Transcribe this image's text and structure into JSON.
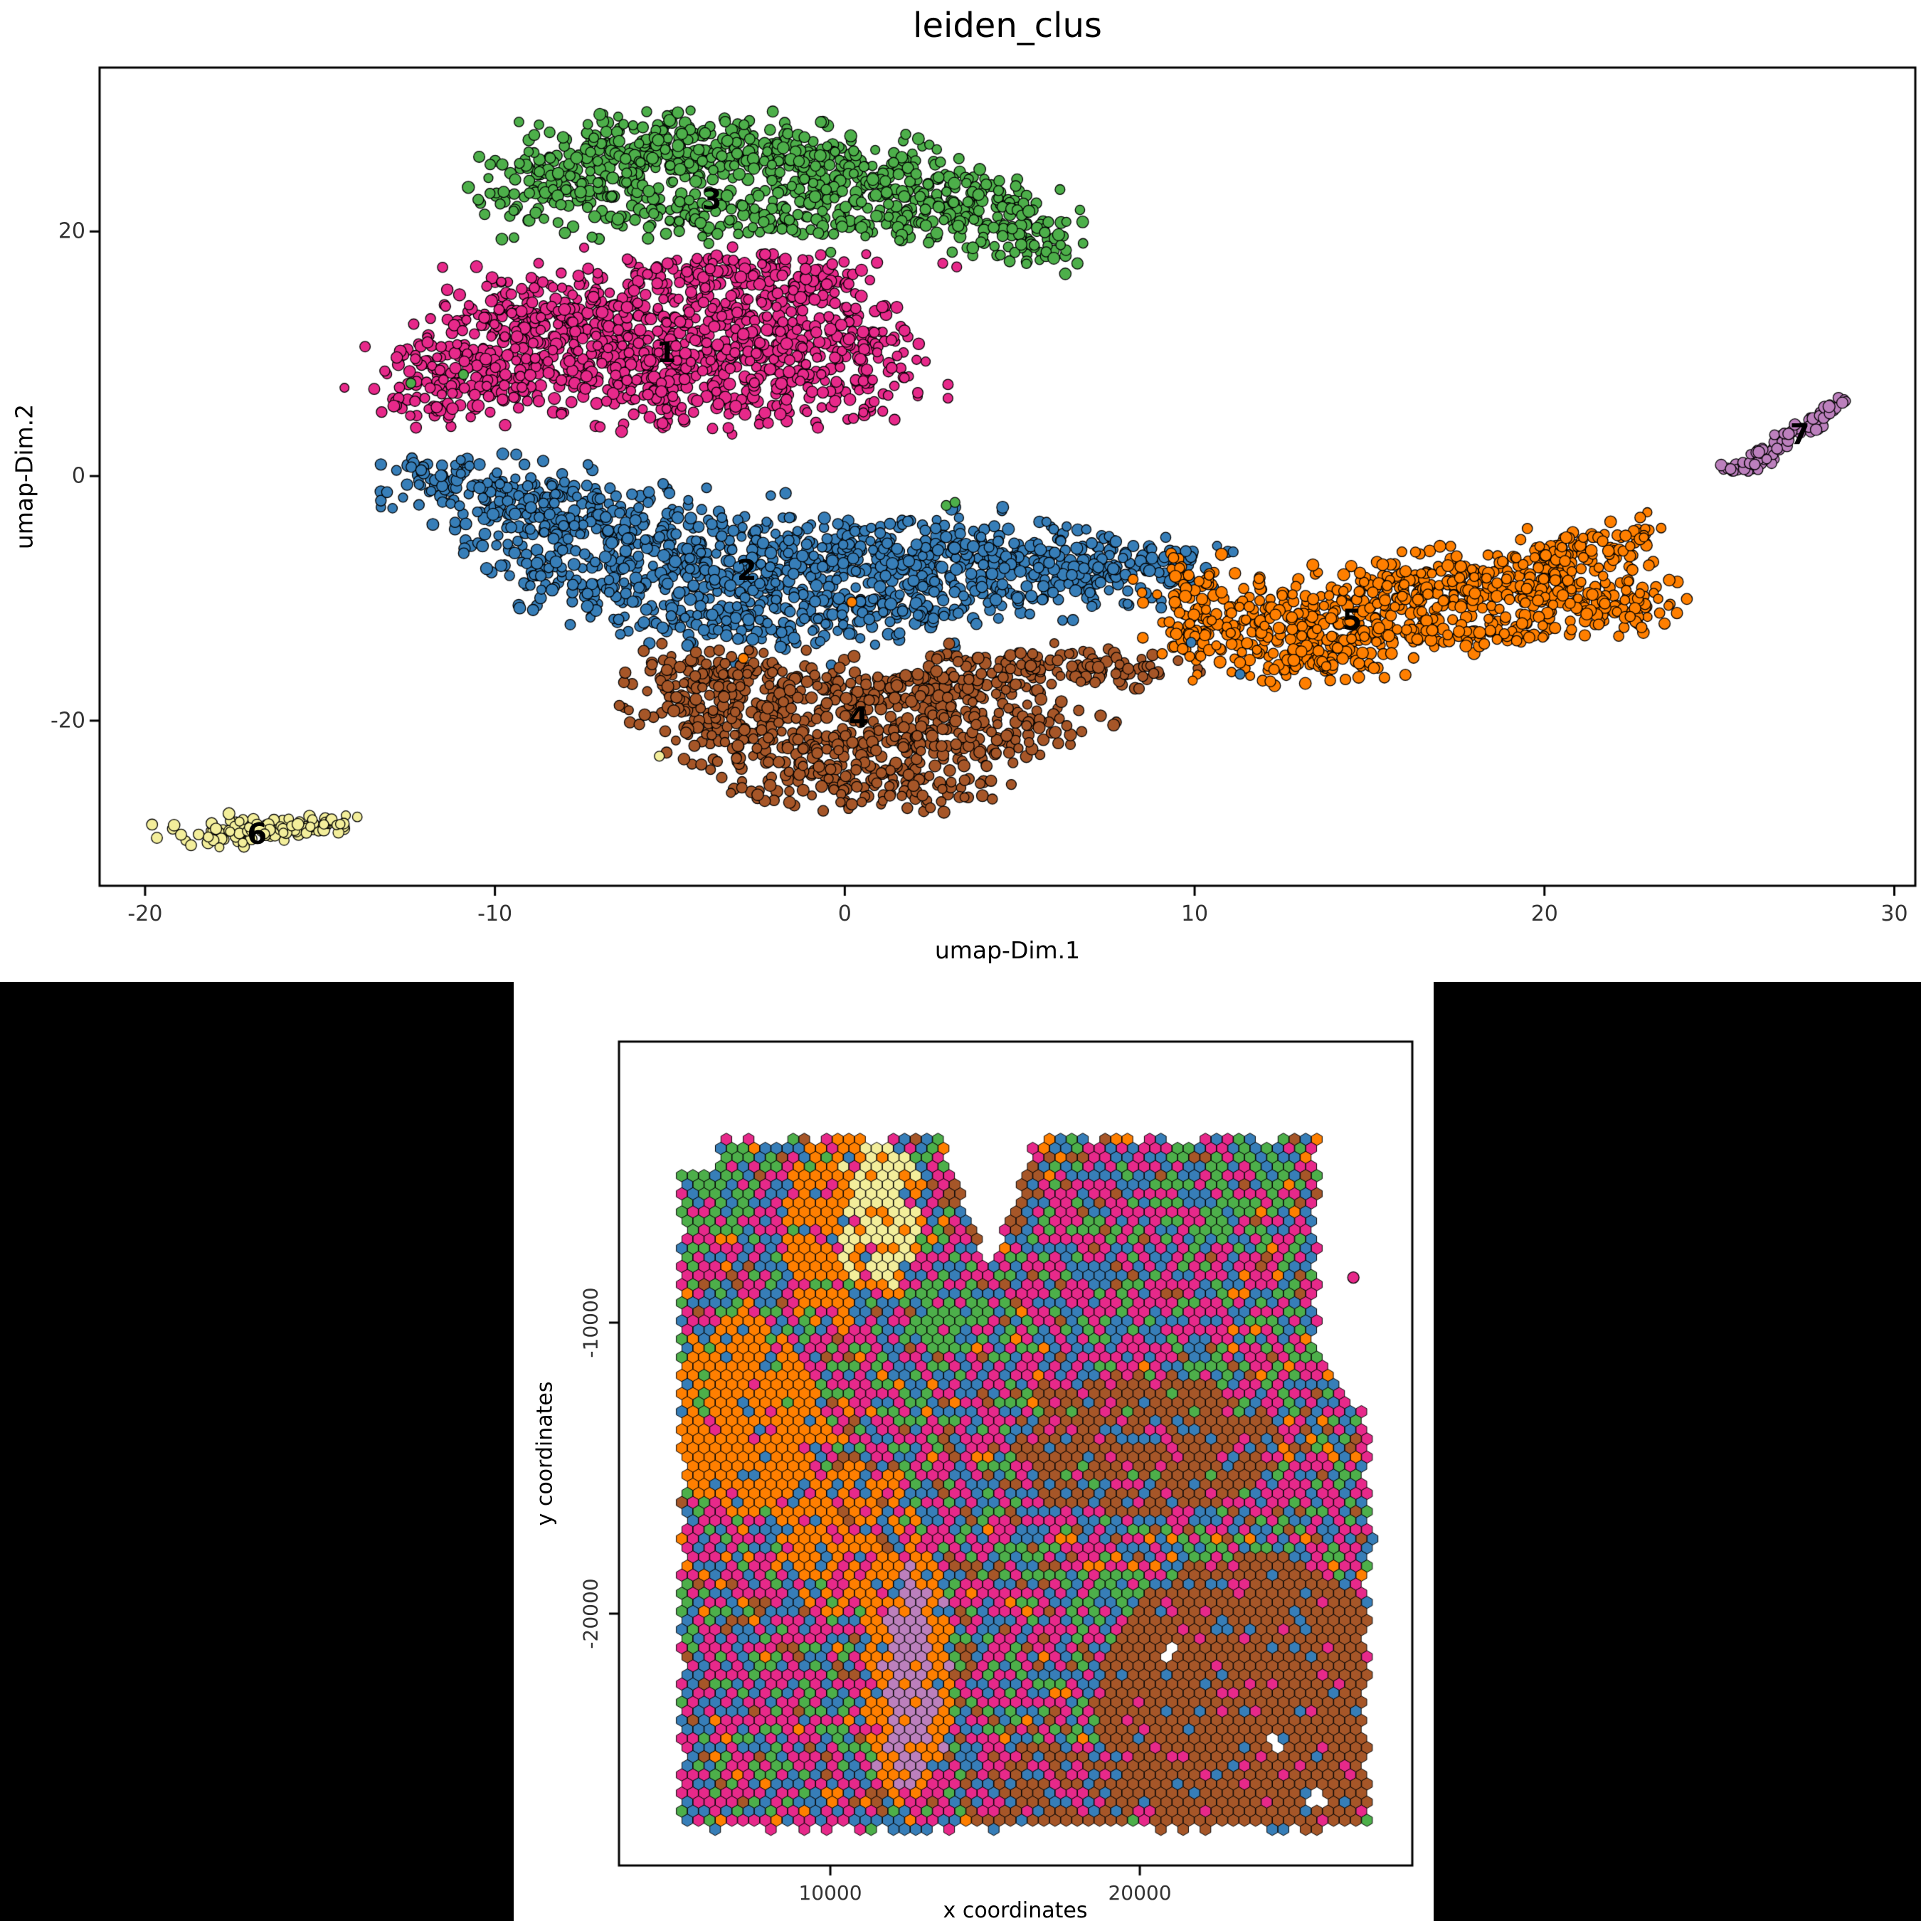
{
  "clusters": [
    {
      "label": "1",
      "color": "#E7298A"
    },
    {
      "label": "2",
      "color": "#377EB8"
    },
    {
      "label": "3",
      "color": "#4DAF4A"
    },
    {
      "label": "4",
      "color": "#A65628"
    },
    {
      "label": "5",
      "color": "#FF7F00"
    },
    {
      "label": "6",
      "color": "#F3EE9B"
    },
    {
      "label": "7",
      "color": "#BC80BD"
    }
  ],
  "point_stroke": "#000000",
  "chart_data": [
    {
      "id": "umap",
      "type": "scatter",
      "title": "leiden_clus",
      "xlabel": "umap-Dim.1",
      "ylabel": "umap-Dim.2",
      "xlim": [
        -21.3,
        30.6
      ],
      "ylim": [
        -33.5,
        33.4
      ],
      "x_ticks": [
        -20,
        -10,
        0,
        10,
        20,
        30
      ],
      "y_ticks": [
        -20,
        0,
        20
      ],
      "legend": "none",
      "grid": false,
      "draw_order": [
        "3",
        "1",
        "2",
        "4",
        "5",
        "6",
        "7"
      ],
      "clusters": [
        {
          "label": "3",
          "label_pos": [
            -3.8,
            22.6
          ],
          "blobs": [
            [
              -8.5,
              23.5,
              1.2,
              1.8,
              75
            ],
            [
              -7,
              25,
              1.5,
              2,
              125
            ],
            [
              -5,
              26.5,
              1.5,
              1.5,
              125
            ],
            [
              -3,
              26.5,
              1.5,
              1.5,
              110
            ],
            [
              -1,
              25.5,
              1.5,
              1.5,
              100
            ],
            [
              1,
              24.5,
              1.5,
              1.5,
              90
            ],
            [
              3,
              23,
              1.2,
              1.5,
              75
            ],
            [
              4.5,
              21,
              1,
              1.5,
              60
            ],
            [
              5.5,
              19,
              0.8,
              1.2,
              45
            ],
            [
              -4,
              21.5,
              2.5,
              1.2,
              100
            ],
            [
              -1,
              21,
              2,
              1,
              60
            ],
            [
              2,
              20.5,
              1.5,
              0.8,
              40
            ]
          ]
        },
        {
          "label": "1",
          "label_pos": [
            -5.1,
            10.1
          ],
          "blobs": [
            [
              -9.5,
              12,
              1.5,
              2,
              125
            ],
            [
              -7.5,
              13.5,
              1.8,
              2,
              150
            ],
            [
              -5,
              12,
              2,
              2.5,
              175
            ],
            [
              -3,
              10,
              2,
              2.5,
              150
            ],
            [
              -1.5,
              13,
              1.5,
              2,
              100
            ],
            [
              -6.5,
              8.5,
              2,
              1.5,
              125
            ],
            [
              -10,
              7.5,
              1.5,
              1.5,
              90
            ],
            [
              -12,
              6,
              1,
              1,
              40
            ],
            [
              -3.5,
              6,
              2,
              1.5,
              100
            ],
            [
              -0.5,
              8,
              1.5,
              2,
              75
            ],
            [
              -1,
              16.5,
              1.2,
              1.2,
              50
            ],
            [
              -4,
              16.5,
              1.5,
              1,
              60
            ],
            [
              0.5,
              11,
              1,
              1.5,
              40
            ],
            [
              -12,
              9.5,
              0.8,
              0.8,
              25
            ]
          ]
        },
        {
          "label": "2",
          "label_pos": [
            -2.8,
            -7.7
          ],
          "blobs": [
            [
              -10.5,
              -1,
              1.2,
              1.2,
              60
            ],
            [
              -9,
              -2.5,
              1.5,
              1.5,
              100
            ],
            [
              -7,
              -4,
              1.8,
              1.8,
              125
            ],
            [
              -4.5,
              -6,
              2,
              2,
              150
            ],
            [
              -2,
              -8,
              2,
              2,
              150
            ],
            [
              0.5,
              -7.5,
              1.8,
              1.8,
              125
            ],
            [
              3,
              -6,
              2,
              1.5,
              125
            ],
            [
              5.5,
              -6.5,
              1.8,
              1.2,
              100
            ],
            [
              7.5,
              -8,
              1.5,
              1.2,
              75
            ],
            [
              -1,
              -12,
              1.8,
              1.5,
              90
            ],
            [
              -4,
              -11.5,
              1.5,
              1.2,
              65
            ],
            [
              2,
              -10.5,
              1.5,
              1.2,
              65
            ],
            [
              -6.5,
              -9.5,
              1,
              1.5,
              50
            ],
            [
              -8.5,
              -7.5,
              0.8,
              1.5,
              40
            ],
            [
              5,
              -9.5,
              1.5,
              1,
              50
            ],
            [
              8.8,
              -7,
              1,
              1,
              40
            ],
            [
              -11.5,
              0.5,
              0.8,
              0.8,
              30
            ]
          ]
        },
        {
          "label": "4",
          "label_pos": [
            0.4,
            -19.8
          ],
          "blobs": [
            [
              -4.5,
              -16,
              1,
              1,
              50
            ],
            [
              -2.5,
              -17,
              1.5,
              1.2,
              90
            ],
            [
              0,
              -18.5,
              2,
              1.5,
              125
            ],
            [
              2.5,
              -17.5,
              1.5,
              1.2,
              90
            ],
            [
              4.5,
              -16,
              1.2,
              1,
              60
            ],
            [
              6.5,
              -15.5,
              1.2,
              0.8,
              50
            ],
            [
              -2,
              -21.5,
              1.8,
              1.5,
              100
            ],
            [
              0.5,
              -23,
              1.8,
              1.5,
              100
            ],
            [
              3,
              -22,
              1.5,
              1.2,
              75
            ],
            [
              -0.5,
              -25.5,
              1.5,
              1,
              60
            ],
            [
              2,
              -25.8,
              1.2,
              0.8,
              40
            ],
            [
              -4.5,
              -19.5,
              1,
              1,
              40
            ],
            [
              5,
              -20,
              1.2,
              1,
              45
            ],
            [
              8,
              -16,
              1,
              0.6,
              30
            ]
          ]
        },
        {
          "label": "5",
          "label_pos": [
            14.5,
            -11.8
          ],
          "blobs": [
            [
              10.5,
              -12,
              1,
              1.5,
              60
            ],
            [
              12,
              -13.5,
              1.5,
              1.5,
              100
            ],
            [
              14,
              -12,
              1.8,
              1.8,
              140
            ],
            [
              16,
              -10,
              1.8,
              1.5,
              125
            ],
            [
              18,
              -8.5,
              1.5,
              1.2,
              100
            ],
            [
              20,
              -7.5,
              1.2,
              1.2,
              75
            ],
            [
              21.5,
              -9.5,
              1,
              1.5,
              65
            ],
            [
              22.5,
              -11,
              0.8,
              1,
              40
            ],
            [
              19,
              -11.5,
              1.5,
              1,
              65
            ],
            [
              16.5,
              -13,
              1.5,
              0.8,
              50
            ],
            [
              13.5,
              -15.5,
              1.2,
              0.8,
              45
            ],
            [
              10,
              -9,
              0.8,
              1.2,
              40
            ],
            [
              22.3,
              -4.8,
              0.5,
              0.8,
              25
            ],
            [
              21,
              -5.5,
              0.8,
              0.8,
              30
            ]
          ]
        },
        {
          "label": "6",
          "label_pos": [
            -16.8,
            -29.3
          ],
          "blobs": [
            [
              -17.5,
              -29.2,
              1,
              0.5,
              60
            ],
            [
              -15.8,
              -28.6,
              0.8,
              0.45,
              40
            ],
            [
              -14.6,
              -28.2,
              0.4,
              0.3,
              15
            ]
          ]
        },
        {
          "label": "7",
          "label_pos": [
            27.3,
            3.4
          ],
          "blobs": [
            [
              25.6,
              0.6,
              0.25,
              0.3,
              12
            ],
            [
              26.0,
              1.2,
              0.25,
              0.3,
              12
            ],
            [
              26.4,
              2.0,
              0.22,
              0.3,
              11
            ],
            [
              26.8,
              2.8,
              0.22,
              0.3,
              11
            ],
            [
              27.2,
              3.6,
              0.2,
              0.3,
              10
            ],
            [
              27.6,
              4.4,
              0.2,
              0.3,
              10
            ],
            [
              28.0,
              5.1,
              0.18,
              0.25,
              9
            ],
            [
              28.3,
              5.7,
              0.15,
              0.25,
              8
            ],
            [
              28.55,
              6.2,
              0.12,
              0.2,
              5
            ]
          ]
        }
      ],
      "extra_points": [
        {
          "cluster": "3",
          "pts": [
            [
              -12.4,
              7.6
            ],
            [
              -10.9,
              8.3
            ],
            [
              2.9,
              -2.4
            ],
            [
              3.15,
              -2.15
            ],
            [
              -0.4,
              18.3
            ]
          ]
        },
        {
          "cluster": "1",
          "pts": [
            [
              2.8,
              17.4
            ],
            [
              3.2,
              17.1
            ]
          ]
        },
        {
          "cluster": "2",
          "pts": [
            [
              11.3,
              -16.2
            ],
            [
              9.9,
              -13.6
            ]
          ]
        },
        {
          "cluster": "5",
          "pts": [
            [
              -2.9,
              -14.9
            ],
            [
              0.2,
              -10.3
            ]
          ]
        },
        {
          "cluster": "6",
          "pts": [
            [
              -5.3,
              -22.9
            ]
          ]
        }
      ]
    },
    {
      "id": "spatial",
      "type": "hexbin-map",
      "title": "",
      "xlabel": "x coordinates",
      "ylabel": "y coordinates",
      "xlim": [
        3172,
        28804
      ],
      "ylim": [
        -28655,
        -342
      ],
      "x_ticks": [
        10000,
        20000
      ],
      "y_ticks": [
        -10000,
        -20000
      ],
      "grid": false,
      "extent": {
        "x_start": 5200,
        "y_start": -3700,
        "dx": 360,
        "dy": 312,
        "cols": 63,
        "rows": 77,
        "x_min": 5150,
        "x_max_upper": 25700,
        "x_max_lower": 27400,
        "x_split_hi": -11200,
        "x_split_lo": -13200,
        "y_top": -3650,
        "y_bottom": -27350,
        "topleft_x": 6400,
        "topleft_y": -4800,
        "notch_x": 15100,
        "notch_hw": 1500,
        "notch_depth": 4700
      },
      "holes": [
        [
          24300,
          -24400
        ],
        [
          25700,
          -26400
        ],
        [
          21000,
          -21300
        ]
      ],
      "zones": [
        {
          "cx": 11600,
          "cy": -5300,
          "rx": 800,
          "ry": 1900,
          "weights": {
            "6": 0.9,
            "5": 0.1
          }
        },
        {
          "cx": 11600,
          "cy": -6200,
          "rx": 1400,
          "ry": 3000,
          "weights": {
            "6": 0.45,
            "5": 0.35,
            "1": 0.1,
            "2": 0.1
          }
        },
        {
          "cx": 12600,
          "cy": -22300,
          "rx": 750,
          "ry": 3600,
          "weights": {
            "7": 0.85,
            "5": 0.15
          }
        },
        {
          "cx": 12500,
          "cy": -22000,
          "rx": 1500,
          "ry": 4400,
          "weights": {
            "5": 0.65,
            "7": 0.1,
            "1": 0.1,
            "2": 0.15
          }
        },
        {
          "cx": 7200,
          "cy": -13200,
          "rx": 2400,
          "ry": 3400,
          "weights": {
            "5": 0.85,
            "2": 0.07,
            "1": 0.05,
            "3": 0.03
          }
        },
        {
          "cx": 9800,
          "cy": -6800,
          "rx": 1300,
          "ry": 3400,
          "weights": {
            "5": 0.7,
            "1": 0.12,
            "2": 0.1,
            "3": 0.08
          }
        },
        {
          "cx": 10600,
          "cy": -17500,
          "rx": 2300,
          "ry": 2700,
          "weights": {
            "5": 0.6,
            "2": 0.15,
            "1": 0.15,
            "3": 0.05,
            "4": 0.05
          }
        },
        {
          "cx": 15300,
          "cy": -5300,
          "rx": 1500,
          "ry": 1800,
          "weights": {
            "4": 0.65,
            "1": 0.2,
            "2": 0.15
          }
        },
        {
          "cx": 6300,
          "cy": -5300,
          "rx": 1400,
          "ry": 1800,
          "weights": {
            "3": 0.6,
            "1": 0.22,
            "2": 0.18
          }
        },
        {
          "cx": 13900,
          "cy": -9800,
          "rx": 1300,
          "ry": 1400,
          "weights": {
            "3": 0.55,
            "1": 0.25,
            "2": 0.2
          }
        },
        {
          "cx": 21800,
          "cy": -6200,
          "rx": 1700,
          "ry": 1500,
          "weights": {
            "3": 0.5,
            "1": 0.3,
            "2": 0.2
          }
        },
        {
          "cx": 19300,
          "cy": -8800,
          "rx": 3200,
          "ry": 2600,
          "weights": {
            "1": 0.5,
            "2": 0.25,
            "3": 0.15,
            "4": 0.1
          }
        },
        {
          "cx": 20200,
          "cy": -14200,
          "rx": 4300,
          "ry": 2400,
          "weights": {
            "4": 0.7,
            "2": 0.12,
            "1": 0.12,
            "3": 0.06
          }
        },
        {
          "cx": 23600,
          "cy": -23200,
          "rx": 5000,
          "ry": 5200,
          "weights": {
            "4": 0.85,
            "1": 0.08,
            "2": 0.07
          }
        },
        {
          "cx": 19200,
          "cy": -19800,
          "rx": 1600,
          "ry": 1300,
          "weights": {
            "3": 0.45,
            "1": 0.3,
            "2": 0.25
          }
        },
        {
          "cx": 17000,
          "cy": -26200,
          "rx": 2800,
          "ry": 1900,
          "weights": {
            "4": 0.55,
            "1": 0.25,
            "2": 0.2
          }
        }
      ],
      "default_weights": {
        "1": 0.38,
        "2": 0.27,
        "3": 0.2,
        "5": 0.06,
        "4": 0.09
      },
      "outlier_point": {
        "cluster": "1",
        "pos": [
          26900,
          -8450
        ]
      }
    }
  ]
}
